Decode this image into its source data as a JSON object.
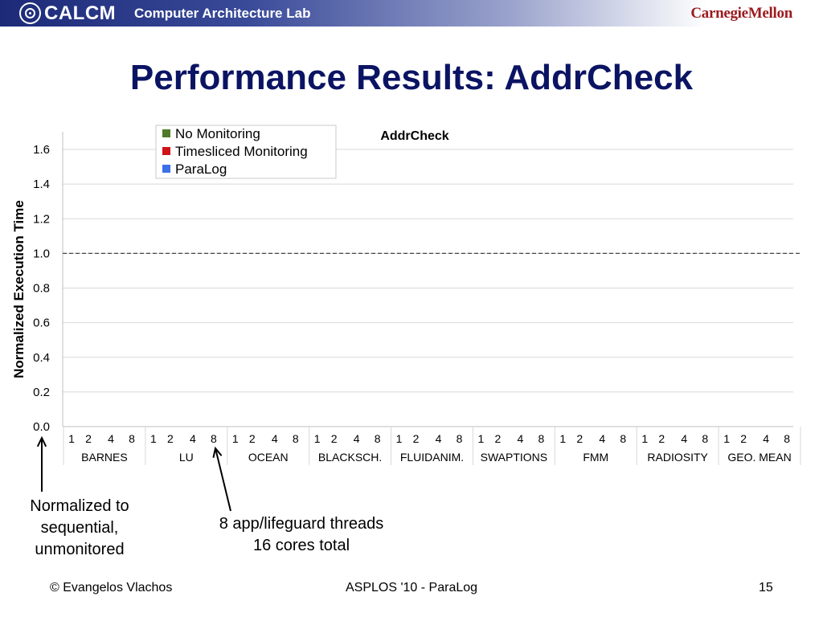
{
  "header": {
    "logo_mark_icon": "concentric-circles-icon",
    "logo_text": "CALCM",
    "lab_name": "Computer Architecture Lab",
    "university": "CarnegieMellon"
  },
  "slide": {
    "title": "Performance Results: AddrCheck"
  },
  "chart_data": {
    "type": "bar",
    "title": "AddrCheck",
    "ylabel": "Normalized Execution Time",
    "xlabel": "",
    "ylim": [
      0,
      1.6
    ],
    "yticks": [
      "0.0",
      "0.2",
      "0.4",
      "0.6",
      "0.8",
      "1.0",
      "1.2",
      "1.4",
      "1.6"
    ],
    "grid": true,
    "legend_position": "top-left",
    "reference_line": {
      "y": 1.0,
      "style": "dashed"
    },
    "groups": [
      "BARNES",
      "LU",
      "OCEAN",
      "BLACKSCH.",
      "FLUIDANIM.",
      "SWAPTIONS",
      "FMM",
      "RADIOSITY",
      "GEO. MEAN"
    ],
    "thread_counts": [
      "1",
      "2",
      "4",
      "8"
    ],
    "series": [
      {
        "name": "No Monitoring",
        "color": "#4f7a28",
        "values": []
      },
      {
        "name": "Timesliced Monitoring",
        "color": "#d0121b",
        "values": []
      },
      {
        "name": "ParaLog",
        "color": "#3c6fe8",
        "values": []
      }
    ]
  },
  "callouts": {
    "left": [
      "Normalized to",
      "sequential,",
      "unmonitored"
    ],
    "right": [
      "8 app/lifeguard threads",
      "16 cores total"
    ]
  },
  "footer": {
    "author": "© Evangelos Vlachos",
    "venue": "ASPLOS '10 - ParaLog",
    "page": "15"
  }
}
